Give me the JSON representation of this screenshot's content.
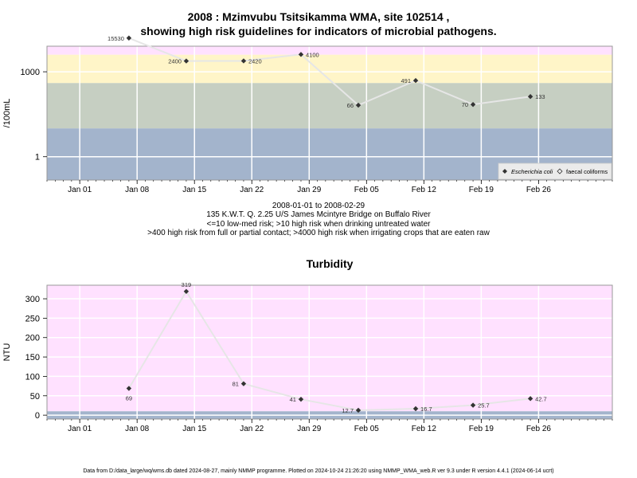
{
  "top_title": {
    "line1": "2008 : Mzimvubu Tsitsikamma WMA, site 102514 ,",
    "line2": "showing high risk guidelines for indicators of microbial pathogens."
  },
  "info": {
    "line1": "2008-01-01 to 2008-02-29",
    "line2": "135 K.W.T. Q. 2.25 U/S James Mcintyre Bridge on Buffalo River",
    "line3": "<=10 low-med risk; >10 high risk when drinking untreated water",
    "line4": ">400 high risk from full or partial contact; >4000 high risk when irrigating crops that are eaten raw"
  },
  "footer": "Data from D:/data_large/wq/wms.db dated 2024-08-27, mainly NMMP programme. Plotted on 2024-10-24 21:26:20 using NMMP_WMA_web.R ver 9.3 under R version 4.4.1 (2024-06-14 ucrt)",
  "colors": {
    "pink": "#FFE1FF",
    "yellow": "#FFF5C8",
    "green": "#C6CFC2",
    "blue": "#A3B4CC",
    "line": "#E6E6E6",
    "point": "#333333",
    "frame": "#999999",
    "grid": "#FFFFFF"
  },
  "chart_data": [
    {
      "type": "line",
      "title": "",
      "ylabel": "/100mL",
      "xlabel": "",
      "y_scale": "log",
      "ylim": [
        0.15,
        8000
      ],
      "xlim": [
        "2007-12-28",
        "2008-03-06"
      ],
      "x_ticks": [
        {
          "date": "2008-01-01",
          "label": "Jan 01"
        },
        {
          "date": "2008-01-08",
          "label": "Jan 08"
        },
        {
          "date": "2008-01-15",
          "label": "Jan 15"
        },
        {
          "date": "2008-01-22",
          "label": "Jan 22"
        },
        {
          "date": "2008-01-29",
          "label": "Jan 29"
        },
        {
          "date": "2008-02-05",
          "label": "Feb 05"
        },
        {
          "date": "2008-02-12",
          "label": "Feb 12"
        },
        {
          "date": "2008-02-19",
          "label": "Feb 19"
        },
        {
          "date": "2008-02-26",
          "label": "Feb 26"
        }
      ],
      "y_ticks": [
        {
          "value": 1,
          "label": "1"
        },
        {
          "value": 1000,
          "label": "1000"
        }
      ],
      "bands": [
        {
          "from": 4000,
          "to": 8000,
          "color": "#FFE1FF"
        },
        {
          "from": 400,
          "to": 4000,
          "color": "#FFF5C8"
        },
        {
          "from": 10,
          "to": 400,
          "color": "#C6CFC2"
        },
        {
          "from": 0.15,
          "to": 10,
          "color": "#A3B4CC"
        }
      ],
      "series": [
        {
          "name": "Escherichia coli",
          "x": [
            "2008-01-07",
            "2008-01-14",
            "2008-01-21",
            "2008-01-28",
            "2008-02-04",
            "2008-02-11",
            "2008-02-18",
            "2008-02-25"
          ],
          "values": [
            15530,
            2400,
            2420,
            4100,
            66,
            491,
            70,
            133
          ],
          "labels": [
            "15530",
            "2400",
            "2420",
            "4100",
            "66",
            "491",
            "70",
            "133"
          ],
          "label_side": [
            "left",
            "left",
            "right",
            "right",
            "left",
            "left",
            "left",
            "right"
          ]
        }
      ],
      "legend": {
        "position": "bottom-right",
        "entries": [
          {
            "label": "Escherichia coli",
            "marker": "diamond-filled"
          },
          {
            "label": "faecal coliforms",
            "marker": "diamond-open"
          }
        ]
      },
      "grid": true
    },
    {
      "type": "line",
      "title": "Turbidity",
      "ylabel": "NTU",
      "xlabel": "",
      "y_scale": "linear",
      "ylim": [
        -10,
        335
      ],
      "xlim": [
        "2007-12-28",
        "2008-03-06"
      ],
      "x_ticks": [
        {
          "date": "2008-01-01",
          "label": "Jan 01"
        },
        {
          "date": "2008-01-08",
          "label": "Jan 08"
        },
        {
          "date": "2008-01-15",
          "label": "Jan 15"
        },
        {
          "date": "2008-01-22",
          "label": "Jan 22"
        },
        {
          "date": "2008-01-29",
          "label": "Jan 29"
        },
        {
          "date": "2008-02-05",
          "label": "Feb 05"
        },
        {
          "date": "2008-02-12",
          "label": "Feb 12"
        },
        {
          "date": "2008-02-19",
          "label": "Feb 19"
        },
        {
          "date": "2008-02-26",
          "label": "Feb 26"
        }
      ],
      "y_ticks": [
        {
          "value": 0,
          "label": "0"
        },
        {
          "value": 50,
          "label": "50"
        },
        {
          "value": 100,
          "label": "100"
        },
        {
          "value": 150,
          "label": "150"
        },
        {
          "value": 200,
          "label": "200"
        },
        {
          "value": 250,
          "label": "250"
        },
        {
          "value": 300,
          "label": "300"
        }
      ],
      "bands": [
        {
          "from": 10,
          "to": 335,
          "color": "#FFE1FF"
        },
        {
          "from": -10,
          "to": 10,
          "color": "#A3B4CC"
        }
      ],
      "series": [
        {
          "name": "",
          "x": [
            "2008-01-07",
            "2008-01-14",
            "2008-01-21",
            "2008-01-28",
            "2008-02-04",
            "2008-02-11",
            "2008-02-18",
            "2008-02-25"
          ],
          "values": [
            69,
            319,
            81,
            41,
            12.7,
            16.7,
            25.7,
            42.7
          ],
          "labels": [
            "69",
            "319",
            "81",
            "41",
            "12.7",
            "16.7",
            "25.7",
            "42.7"
          ],
          "label_side": [
            "below",
            "above",
            "left",
            "left",
            "left",
            "right",
            "right",
            "right"
          ]
        }
      ],
      "grid": true
    }
  ]
}
